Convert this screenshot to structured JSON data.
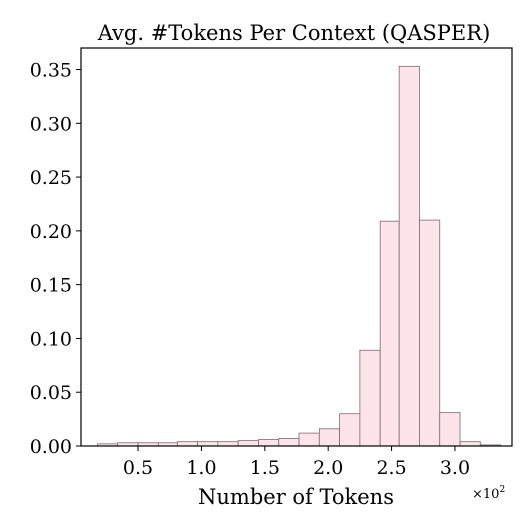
{
  "chart_data": {
    "type": "bar",
    "title": "Avg. #Tokens Per Context (QASPER)",
    "xlabel": "Number of Tokens",
    "x_multiplier": "×10",
    "x_multiplier_exp": "2",
    "ylabel": "",
    "xlim": [
      0.05,
      3.45
    ],
    "ylim": [
      0.0,
      0.37
    ],
    "x_ticks": [
      0.5,
      1.0,
      1.5,
      2.0,
      2.5,
      3.0
    ],
    "x_tick_labels": [
      "0.5",
      "1.0",
      "1.5",
      "2.0",
      "2.5",
      "3.0"
    ],
    "y_ticks": [
      0.0,
      0.05,
      0.1,
      0.15,
      0.2,
      0.25,
      0.3,
      0.35
    ],
    "y_tick_labels": [
      "0.00",
      "0.05",
      "0.10",
      "0.15",
      "0.20",
      "0.25",
      "0.30",
      "0.35"
    ],
    "grid": false,
    "bar_fill": "#fde3ea",
    "bar_edge": "#7a6b70",
    "bins": [
      {
        "start": 0.18,
        "end": 0.34,
        "value": 0.002
      },
      {
        "start": 0.34,
        "end": 0.5,
        "value": 0.003
      },
      {
        "start": 0.5,
        "end": 0.66,
        "value": 0.003
      },
      {
        "start": 0.66,
        "end": 0.81,
        "value": 0.003
      },
      {
        "start": 0.81,
        "end": 0.97,
        "value": 0.004
      },
      {
        "start": 0.97,
        "end": 1.13,
        "value": 0.004
      },
      {
        "start": 1.13,
        "end": 1.29,
        "value": 0.004
      },
      {
        "start": 1.29,
        "end": 1.45,
        "value": 0.005
      },
      {
        "start": 1.45,
        "end": 1.61,
        "value": 0.006
      },
      {
        "start": 1.61,
        "end": 1.77,
        "value": 0.007
      },
      {
        "start": 1.77,
        "end": 1.93,
        "value": 0.012
      },
      {
        "start": 1.93,
        "end": 2.09,
        "value": 0.016
      },
      {
        "start": 2.09,
        "end": 2.25,
        "value": 0.03
      },
      {
        "start": 2.25,
        "end": 2.41,
        "value": 0.089
      },
      {
        "start": 2.41,
        "end": 2.56,
        "value": 0.209
      },
      {
        "start": 2.56,
        "end": 2.72,
        "value": 0.353
      },
      {
        "start": 2.72,
        "end": 2.88,
        "value": 0.21
      },
      {
        "start": 2.88,
        "end": 3.04,
        "value": 0.031
      },
      {
        "start": 3.04,
        "end": 3.2,
        "value": 0.004
      },
      {
        "start": 3.2,
        "end": 3.36,
        "value": 0.001
      }
    ]
  }
}
